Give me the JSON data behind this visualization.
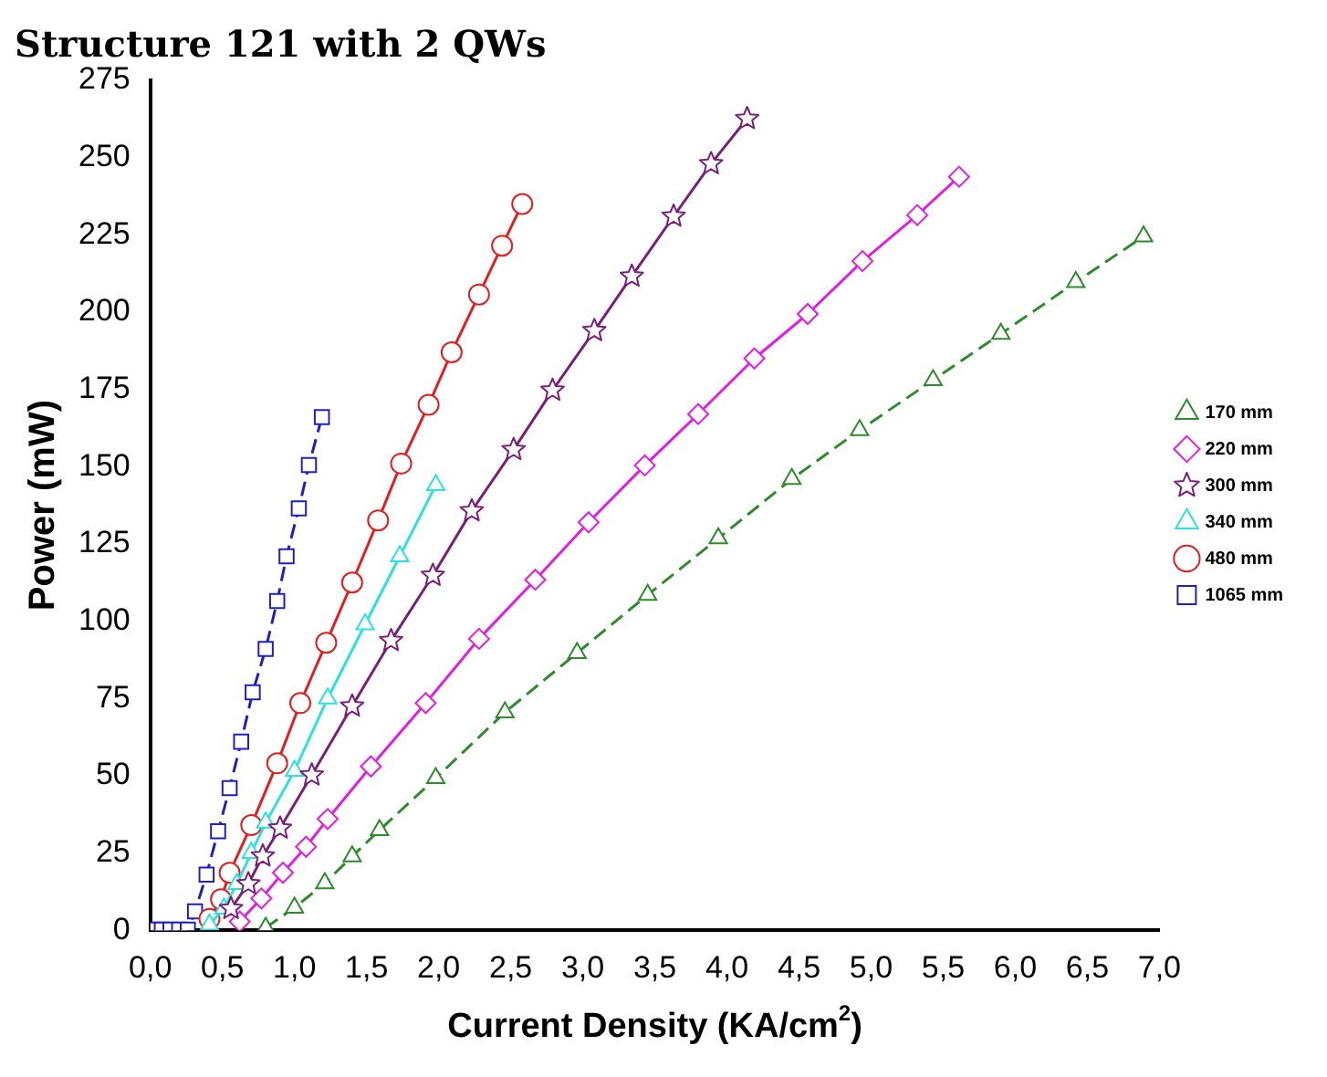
{
  "chart_data": {
    "type": "line",
    "title": "Structure 121 with 2 QWs",
    "xlabel": "Current Density (KA/cm$^{2}$)",
    "ylabel": "Power (mW)",
    "xlim": [
      0,
      7
    ],
    "ylim": [
      0,
      275
    ],
    "xticks": [
      {
        "value": 0,
        "label": "0,0"
      },
      {
        "value": 0.5,
        "label": "0,5"
      },
      {
        "value": 1,
        "label": "1,0"
      },
      {
        "value": 1.5,
        "label": "1,5"
      },
      {
        "value": 2,
        "label": "2,0"
      },
      {
        "value": 2.5,
        "label": "2,5"
      },
      {
        "value": 3,
        "label": "3,0"
      },
      {
        "value": 3.5,
        "label": "3,5"
      },
      {
        "value": 4,
        "label": "4,0"
      },
      {
        "value": 4.5,
        "label": "4,5"
      },
      {
        "value": 5,
        "label": "5,0"
      },
      {
        "value": 5.5,
        "label": "5,5"
      },
      {
        "value": 6,
        "label": "6,0"
      },
      {
        "value": 6.5,
        "label": "6,5"
      },
      {
        "value": 7,
        "label": "7,0"
      }
    ],
    "yticks": [
      0,
      25,
      50,
      75,
      100,
      125,
      150,
      175,
      200,
      225,
      250,
      275
    ],
    "grid": false,
    "legend": "right",
    "series": [
      {
        "name": "170 mm",
        "color": "#2e8b2e",
        "marker": "triangle",
        "line_style": "dashed",
        "x": [
          0.8,
          1.0,
          1.21,
          1.4,
          1.59,
          1.98,
          2.46,
          2.96,
          3.45,
          3.94,
          4.45,
          4.92,
          5.43,
          5.9,
          6.42,
          6.89
        ],
        "values": [
          0.8,
          7.3,
          15.2,
          23.9,
          32.4,
          49.2,
          70.5,
          89.7,
          108.5,
          126.8,
          146,
          161.8,
          178,
          193,
          209.7,
          224.5
        ]
      },
      {
        "name": "220 mm",
        "color": "#e020e0",
        "marker": "diamond",
        "line_style": "solid",
        "x": [
          0.62,
          0.77,
          0.92,
          1.08,
          1.23,
          1.53,
          1.91,
          2.28,
          2.67,
          3.04,
          3.43,
          3.8,
          4.19,
          4.56,
          4.94,
          5.32,
          5.61
        ],
        "values": [
          2.8,
          10.3,
          18.6,
          27,
          36,
          53,
          73.5,
          94.3,
          113.4,
          132,
          150.4,
          167,
          185,
          199.4,
          216.5,
          231.4,
          243.8
        ]
      },
      {
        "name": "300 mm",
        "color": "#7a1f7a",
        "marker": "star",
        "line_style": "solid",
        "x": [
          0.56,
          0.68,
          0.78,
          0.9,
          1.12,
          1.4,
          1.67,
          1.96,
          2.23,
          2.52,
          2.79,
          3.08,
          3.34,
          3.63,
          3.89,
          4.14
        ],
        "values": [
          7,
          15,
          24,
          33,
          50.2,
          72.5,
          93.7,
          114.8,
          135.7,
          155.5,
          174.7,
          194,
          211.6,
          231,
          248,
          262.6
        ]
      },
      {
        "name": "340 mm",
        "color": "#30e0e0",
        "marker": "triangle",
        "line_style": "solid",
        "x": [
          0.41,
          0.51,
          0.6,
          0.7,
          0.8,
          1.0,
          1.23,
          1.49,
          1.73,
          1.98
        ],
        "values": [
          1.8,
          7,
          15,
          25,
          34.8,
          51.6,
          75,
          99,
          121,
          144
        ]
      },
      {
        "name": "480 mm",
        "color": "#e02020",
        "marker": "circle",
        "line_style": "solid",
        "x": [
          0.41,
          0.49,
          0.55,
          0.7,
          0.88,
          1.04,
          1.22,
          1.4,
          1.58,
          1.74,
          1.93,
          2.09,
          2.28,
          2.44,
          2.58
        ],
        "values": [
          3.7,
          10,
          18.6,
          34,
          54,
          73.5,
          93,
          112.5,
          132.6,
          151,
          170,
          187,
          205.7,
          221.5,
          235
        ]
      },
      {
        "name": "1065 mm",
        "color": "#2020c0",
        "marker": "square",
        "line_style": "dashed",
        "x": [
          0.03,
          0.08,
          0.14,
          0.2,
          0.26,
          0.31,
          0.39,
          0.47,
          0.55,
          0.63,
          0.71,
          0.8,
          0.88,
          0.945,
          1.03,
          1.1,
          1.19
        ],
        "values": [
          0.2,
          0.2,
          0.2,
          0.2,
          0.2,
          6.1,
          18,
          32,
          46,
          61,
          77,
          91,
          106.5,
          121,
          136.5,
          150.5,
          166
        ]
      }
    ]
  }
}
